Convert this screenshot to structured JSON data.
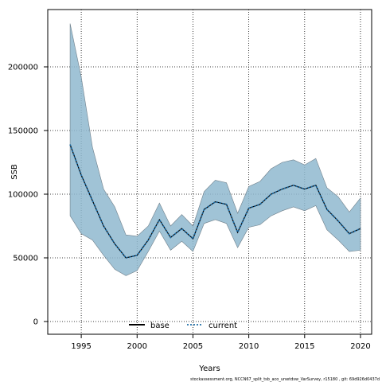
{
  "chart_data": {
    "type": "line",
    "xlabel": "Years",
    "ylabel": "SSB",
    "xlim": [
      1992.0,
      2021.0
    ],
    "ylim": [
      -10000,
      245000
    ],
    "x_ticks": [
      1995,
      2000,
      2005,
      2010,
      2015,
      2020
    ],
    "y_ticks": [
      0,
      50000,
      100000,
      150000,
      200000
    ],
    "x_tick_labels": [
      "1995",
      "2000",
      "2005",
      "2010",
      "2015",
      "2020"
    ],
    "y_tick_labels": [
      "0",
      "50000",
      "100000",
      "150000",
      "200000"
    ],
    "grid": true,
    "legend_position": "bottom",
    "x": [
      1994,
      1995,
      1996,
      1997,
      1998,
      1999,
      2000,
      2001,
      2002,
      2003,
      2004,
      2005,
      2006,
      2007,
      2008,
      2009,
      2010,
      2011,
      2012,
      2013,
      2014,
      2015,
      2016,
      2017,
      2018,
      2019,
      2020
    ],
    "series": [
      {
        "name": "base",
        "color": "#000000",
        "style": "solid",
        "values": [
          139000,
          115000,
          95000,
          75000,
          61000,
          50000,
          52000,
          64000,
          80000,
          66000,
          73000,
          65000,
          88000,
          94000,
          92000,
          70000,
          89000,
          92000,
          100000,
          104000,
          107000,
          104000,
          107000,
          88000,
          79000,
          69000,
          73000
        ]
      },
      {
        "name": "current",
        "color": "#1f6fa8",
        "style": "dotted",
        "values": [
          139000,
          115000,
          95000,
          75000,
          61000,
          50000,
          52000,
          64000,
          80000,
          66000,
          73000,
          65000,
          88000,
          94000,
          92000,
          70000,
          89000,
          92000,
          100000,
          104000,
          107000,
          104000,
          107000,
          88000,
          79000,
          69000,
          73000
        ]
      }
    ],
    "confidence_band": {
      "color": "#8fb8cf",
      "upper": [
        234000,
        192000,
        137000,
        104000,
        90000,
        68000,
        67000,
        75000,
        93000,
        75000,
        84000,
        75000,
        102000,
        111000,
        109000,
        85000,
        106000,
        110000,
        120000,
        125000,
        127000,
        123000,
        128000,
        105000,
        98000,
        86000,
        97000
      ],
      "lower": [
        83000,
        69000,
        64000,
        52000,
        41000,
        36000,
        40000,
        55000,
        71000,
        56000,
        63000,
        55000,
        77000,
        80000,
        77000,
        58000,
        74000,
        76000,
        83000,
        87000,
        90000,
        87000,
        91000,
        72000,
        64000,
        55000,
        56000
      ]
    },
    "footer": "stockassessment.org, NCCN67_split_tsb_aco_unwtdsw_VarSurvey, r15180 , git: 69d926d0437d"
  }
}
